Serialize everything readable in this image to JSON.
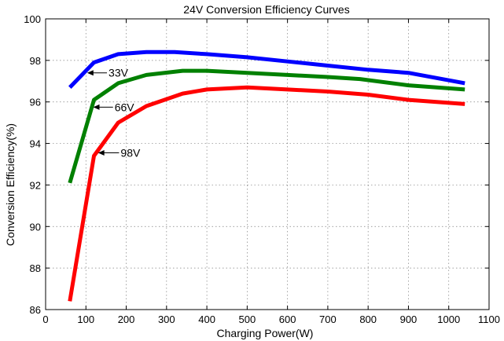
{
  "chart_data": {
    "type": "line",
    "title": "24V Conversion Efficiency Curves",
    "xlabel": "Charging Power(W)",
    "ylabel": "Conversion Efficiency(%)",
    "xlim": [
      0,
      1100
    ],
    "ylim": [
      86,
      100
    ],
    "xticks": [
      0,
      100,
      200,
      300,
      400,
      500,
      600,
      700,
      800,
      900,
      1000,
      1100
    ],
    "yticks": [
      86,
      88,
      90,
      92,
      94,
      96,
      98,
      100
    ],
    "grid": true,
    "series": [
      {
        "name": "33V",
        "color": "#0000ff",
        "x": [
          60,
          120,
          180,
          250,
          320,
          400,
          500,
          600,
          700,
          800,
          900,
          1040
        ],
        "y": [
          96.7,
          97.9,
          98.3,
          98.4,
          98.4,
          98.3,
          98.15,
          97.95,
          97.75,
          97.55,
          97.4,
          96.9
        ]
      },
      {
        "name": "66V",
        "color": "#008000",
        "x": [
          60,
          120,
          180,
          250,
          340,
          400,
          500,
          600,
          700,
          780,
          900,
          1040
        ],
        "y": [
          92.1,
          96.1,
          96.9,
          97.3,
          97.5,
          97.5,
          97.4,
          97.3,
          97.2,
          97.1,
          96.8,
          96.6
        ]
      },
      {
        "name": "98V",
        "color": "#ff0000",
        "x": [
          60,
          120,
          180,
          250,
          340,
          400,
          500,
          600,
          700,
          800,
          900,
          1040
        ],
        "y": [
          86.4,
          93.4,
          95.0,
          95.8,
          96.4,
          96.6,
          96.7,
          96.6,
          96.5,
          96.35,
          96.1,
          95.9
        ]
      }
    ],
    "annotations": [
      {
        "text": "33V",
        "x": 103,
        "y": 97.4,
        "text_x": 160
      },
      {
        "text": "66V",
        "x": 118,
        "y": 95.75,
        "text_x": 175
      },
      {
        "text": "98V",
        "x": 130,
        "y": 93.55,
        "text_x": 190
      }
    ]
  }
}
